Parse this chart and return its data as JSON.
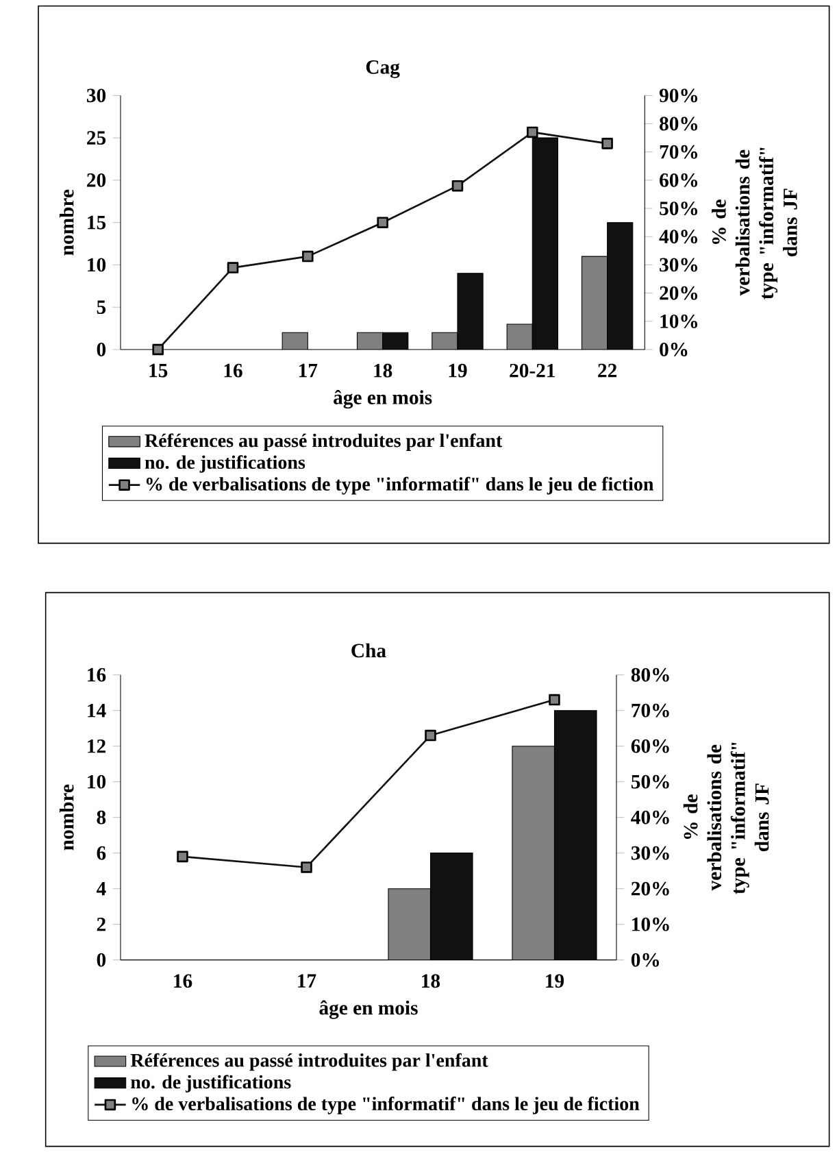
{
  "chart_data": [
    {
      "type": "bar",
      "title": "Cag",
      "xlabel": "âge en mois",
      "ylabel": "nombre",
      "y2label": "% de verbalisations de type \"informatif\" dans JF",
      "categories": [
        "15",
        "16",
        "17",
        "18",
        "19",
        "20-21",
        "22"
      ],
      "series": [
        {
          "name": "Références au passé introduites par l'enfant",
          "color": "#808080",
          "values": [
            null,
            null,
            2,
            2,
            2,
            3,
            11
          ]
        },
        {
          "name": "no. de justifications",
          "color": "#111111",
          "values": [
            null,
            null,
            null,
            2,
            9,
            25,
            15
          ]
        },
        {
          "name": "% de verbalisations de type \"informatif\" dans le jeu de fiction",
          "type": "line",
          "axis": "y2",
          "marker": "square",
          "color": "#111111",
          "values": [
            0,
            29,
            33,
            45,
            58,
            77,
            73
          ]
        }
      ],
      "ylim": [
        0,
        30
      ],
      "yticks": [
        0,
        5,
        10,
        15,
        20,
        25,
        30
      ],
      "y2lim": [
        0,
        90
      ],
      "y2ticks": [
        {
          "value": 0,
          "label": "0%"
        },
        {
          "value": 10,
          "label": "10%"
        },
        {
          "value": 20,
          "label": "20%"
        },
        {
          "value": 30,
          "label": "30%"
        },
        {
          "value": 40,
          "label": "40%"
        },
        {
          "value": 50,
          "label": "50%"
        },
        {
          "value": 60,
          "label": "60%"
        },
        {
          "value": 70,
          "label": "70%"
        },
        {
          "value": 80,
          "label": "80%"
        },
        {
          "value": 90,
          "label": "90%"
        }
      ],
      "legend": "bottom"
    },
    {
      "type": "bar",
      "title": "Cha",
      "xlabel": "âge en mois",
      "ylabel": "nombre",
      "y2label": "% de verbalisations de type \"informatif\" dans JF",
      "categories": [
        "16",
        "17",
        "18",
        "19"
      ],
      "series": [
        {
          "name": "Références au passé introduites par l'enfant",
          "color": "#808080",
          "values": [
            null,
            null,
            4,
            12
          ]
        },
        {
          "name": "no. de justifications",
          "color": "#111111",
          "values": [
            null,
            null,
            6,
            14
          ]
        },
        {
          "name": "% de verbalisations de type \"informatif\" dans le jeu de fiction",
          "type": "line",
          "axis": "y2",
          "marker": "square",
          "color": "#111111",
          "values": [
            29,
            26,
            63,
            73
          ]
        }
      ],
      "ylim": [
        0,
        16
      ],
      "yticks": [
        0,
        2,
        4,
        6,
        8,
        10,
        12,
        14,
        16
      ],
      "y2lim": [
        0,
        80
      ],
      "y2ticks": [
        {
          "value": 0,
          "label": "0%"
        },
        {
          "value": 10,
          "label": "10%"
        },
        {
          "value": 20,
          "label": "20%"
        },
        {
          "value": 30,
          "label": "30%"
        },
        {
          "value": 40,
          "label": "40%"
        },
        {
          "value": 50,
          "label": "50%"
        },
        {
          "value": 60,
          "label": "60%"
        },
        {
          "value": 70,
          "label": "70%"
        },
        {
          "value": 80,
          "label": "80%"
        }
      ],
      "legend": "bottom"
    }
  ]
}
